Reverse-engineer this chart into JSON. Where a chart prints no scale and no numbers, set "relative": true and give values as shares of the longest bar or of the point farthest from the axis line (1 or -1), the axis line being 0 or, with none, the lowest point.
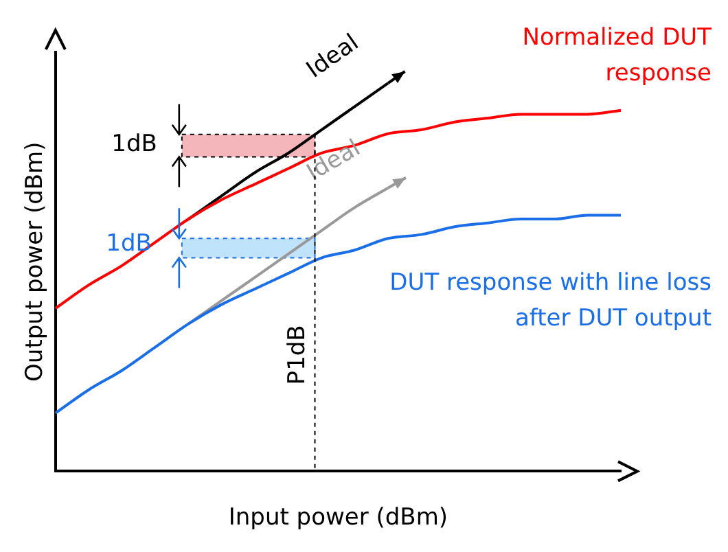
{
  "chart_data": {
    "type": "line",
    "relative": true,
    "xlabel": "Input power (dBm)",
    "ylabel": "Output power (dBm)",
    "categories": [
      null,
      null,
      null,
      null,
      null,
      null,
      null,
      null,
      null,
      null,
      null,
      null,
      null,
      null,
      null,
      null,
      null,
      null
    ],
    "series": [
      {
        "name": "Normalized DUT response",
        "color": "#ff0000",
        "values": [
          0.42,
          0.48,
          0.53,
          0.59,
          0.65,
          0.7,
          0.74,
          0.78,
          0.82,
          0.84,
          0.87,
          0.88,
          0.9,
          0.91,
          0.92,
          0.92,
          0.92,
          0.93
        ]
      },
      {
        "name": "DUT response with line loss after DUT output",
        "color": "#1a6ee8",
        "values": [
          0.15,
          0.21,
          0.26,
          0.32,
          0.38,
          0.43,
          0.47,
          0.51,
          0.55,
          0.57,
          0.6,
          0.61,
          0.63,
          0.64,
          0.65,
          0.65,
          0.66,
          0.66
        ]
      },
      {
        "name": "Ideal",
        "color": "#000000",
        "values": [
          null,
          null,
          null,
          null,
          0.65,
          0.71,
          0.77,
          0.82,
          0.88,
          0.94,
          1.0,
          null,
          null,
          null,
          null,
          null,
          null,
          null
        ]
      },
      {
        "name": "Ideal",
        "color": "#999999",
        "values": [
          null,
          null,
          null,
          null,
          0.38,
          0.44,
          0.5,
          0.56,
          0.62,
          0.68,
          0.73,
          null,
          null,
          null,
          null,
          null,
          null,
          null
        ]
      }
    ],
    "annotations": [
      "1dB",
      "1dB",
      "P1dB"
    ],
    "grid": false,
    "legend": false,
    "marker": "none",
    "line_style": "solid"
  }
}
